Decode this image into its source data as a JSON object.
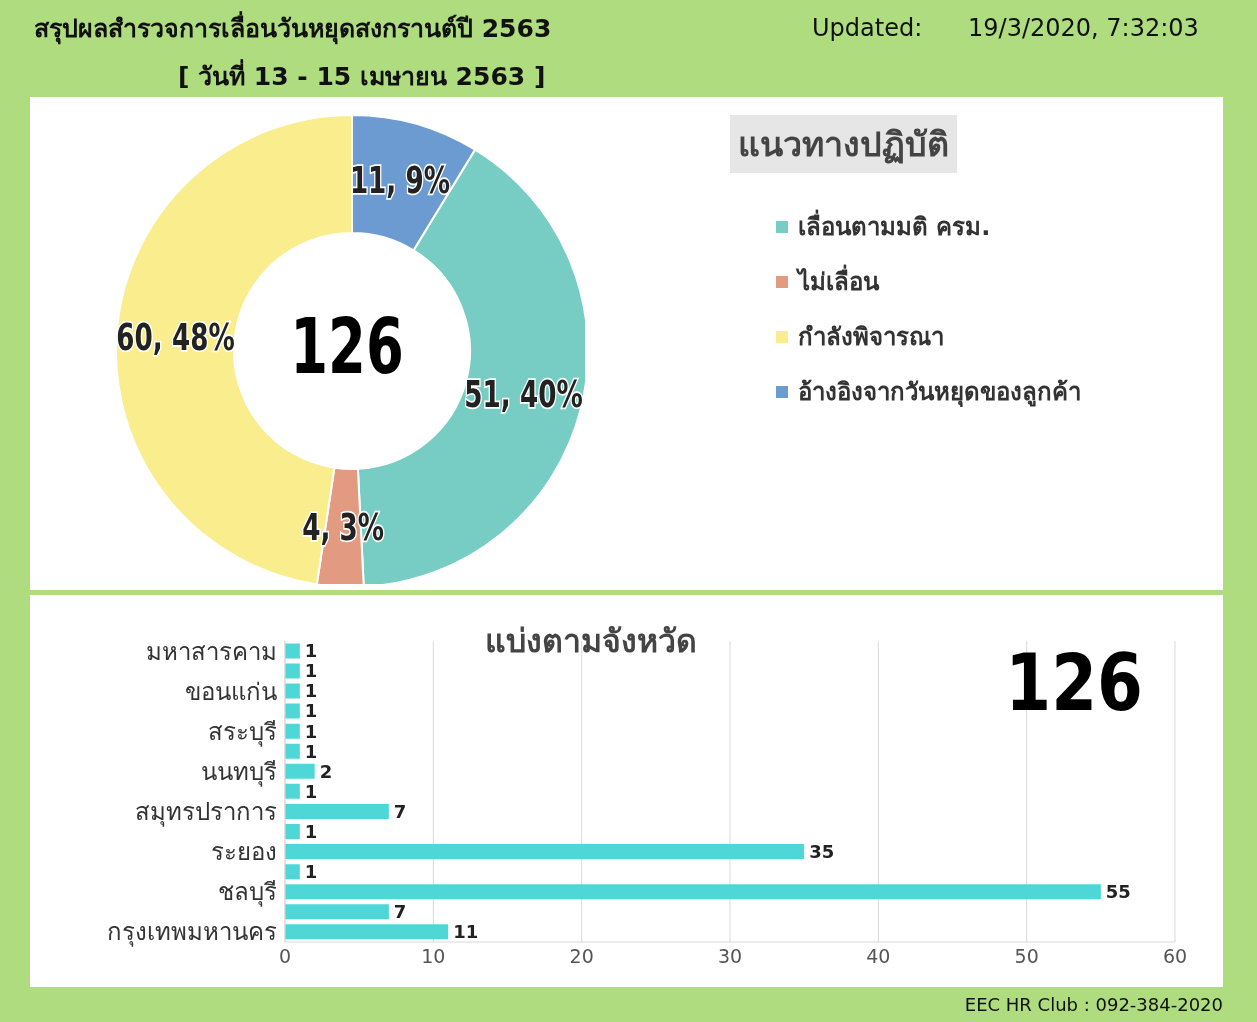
{
  "chart_data": [
    {
      "type": "donut",
      "title": "สรุปผลสำรวจการเลื่อนวันหยุดสงกรานต์ปี 2563",
      "subtitle": "[ วันที่ 13 - 15 เมษายน 2563 ]",
      "categories": [
        "เลื่อนตามมติ ครม.",
        "ไม่เลื่อน",
        "กำลังพิจารณา",
        "อ้างอิงจากวันหยุดของลูกค้า"
      ],
      "values": [
        51,
        4,
        60,
        11
      ],
      "colors": [
        "#77cdc4",
        "#e29a80",
        "#f9ed8d",
        "#6b9bd1"
      ],
      "value_labels": [
        "51, 40%",
        "4, 3%",
        "60, 48%",
        "11, 9%"
      ],
      "legend_title": "แนวทางปฏิบัติ",
      "legend": "right",
      "annotations": [
        "126",
        "Updated:      19/3/2020, 7:32:03"
      ]
    },
    {
      "type": "bar",
      "orientation": "horizontal",
      "title": "แบ่งตามจังหวัด",
      "categories": [
        "มหาสารคาม",
        null,
        "ขอนแก่น",
        null,
        "สระบุรี",
        null,
        "นนทบุรี",
        null,
        "สมุทรปราการ",
        null,
        "ระยอง",
        null,
        "ชลบุรี",
        null,
        "กรุงเทพมหานคร"
      ],
      "values": [
        1,
        1,
        1,
        1,
        1,
        1,
        2,
        1,
        7,
        1,
        35,
        1,
        55,
        7,
        11
      ],
      "color": "#4fd6d6",
      "xlim": [
        0,
        60
      ],
      "xticks": [
        0,
        10,
        20,
        30,
        40,
        50,
        60
      ],
      "grid": "x",
      "data_labels": true,
      "annotations": [
        "126",
        "EEC HR Club : 092-384-2020"
      ]
    }
  ]
}
